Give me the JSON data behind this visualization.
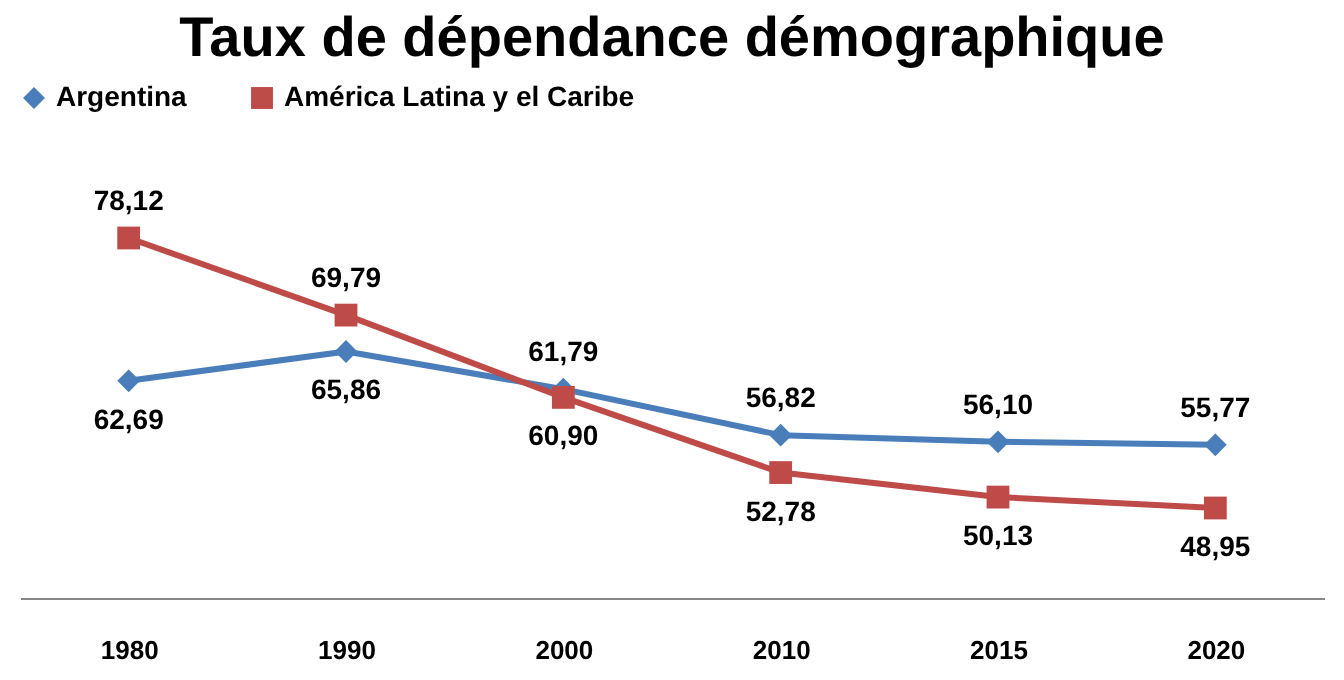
{
  "chart_data": {
    "type": "line",
    "title": "Taux de dépendance démographique",
    "categories": [
      "1980",
      "1990",
      "2000",
      "2010",
      "2015",
      "2020"
    ],
    "series": [
      {
        "name": "Argentina",
        "color": "#4a7ebb",
        "marker": "diamond",
        "values": [
          62.69,
          65.86,
          61.79,
          56.82,
          56.1,
          55.77
        ],
        "value_labels": [
          "62,69",
          "65,86",
          "61,79",
          "56,82",
          "56,10",
          "55,77"
        ]
      },
      {
        "name": "América Latina y el Caribe",
        "color": "#be4b48",
        "marker": "square",
        "values": [
          78.12,
          69.79,
          60.9,
          52.78,
          50.13,
          48.95
        ],
        "value_labels": [
          "78,12",
          "69,79",
          "60,90",
          "52,78",
          "50,13",
          "48,95"
        ]
      }
    ],
    "legend": "top",
    "grid": false
  }
}
